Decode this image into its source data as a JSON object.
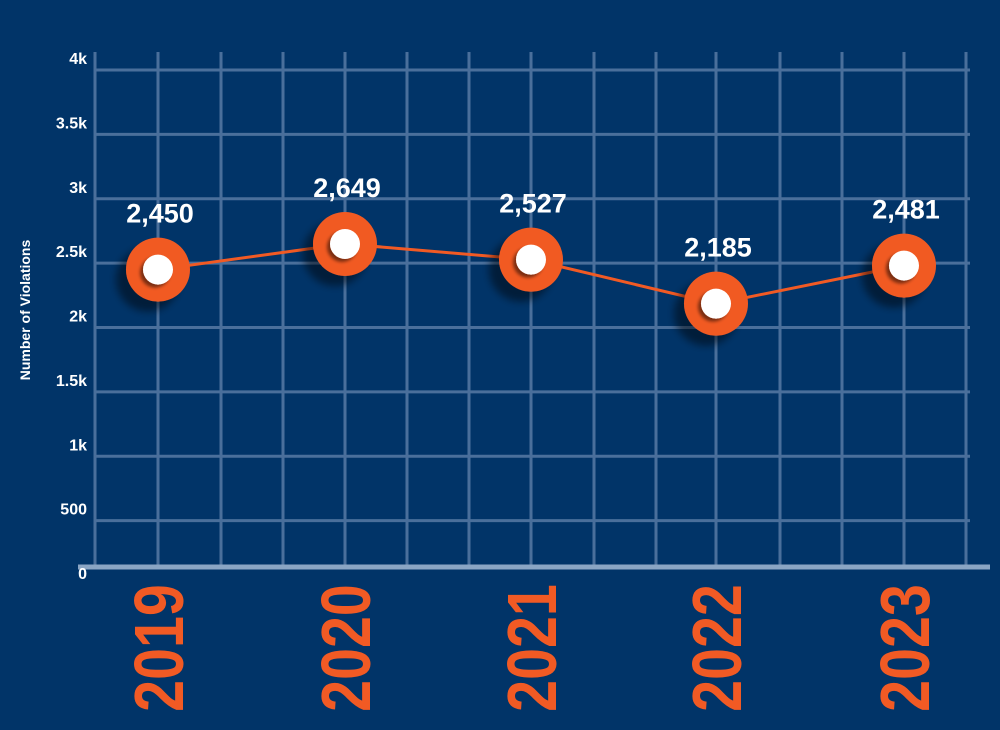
{
  "chart_data": {
    "type": "line",
    "title": "",
    "xlabel": "",
    "ylabel": "Number of Violations",
    "categories": [
      "2019",
      "2020",
      "2021",
      "2022",
      "2023"
    ],
    "series": [
      {
        "values": [
          2450,
          2649,
          2527,
          2185,
          2481
        ]
      }
    ],
    "data_labels": [
      "2,450",
      "2,649",
      "2,527",
      "2,185",
      "2,481"
    ],
    "ylim": [
      0,
      4000
    ],
    "y_ticks": [
      {
        "value": 0,
        "label": "0"
      },
      {
        "value": 500,
        "label": "500"
      },
      {
        "value": 1000,
        "label": "1k"
      },
      {
        "value": 1500,
        "label": "1.5k"
      },
      {
        "value": 2000,
        "label": "2k"
      },
      {
        "value": 2500,
        "label": "2.5k"
      },
      {
        "value": 3000,
        "label": "3k"
      },
      {
        "value": 3500,
        "label": "3.5k"
      },
      {
        "value": 4000,
        "label": "4k"
      }
    ],
    "grid": true,
    "legend": "none"
  },
  "colors": {
    "background": "#013468",
    "grid": "#4a6f9b",
    "axis": "#8aa5c4",
    "accent": "#f15a24",
    "marker_center": "#ffffff",
    "text": "#ffffff"
  }
}
